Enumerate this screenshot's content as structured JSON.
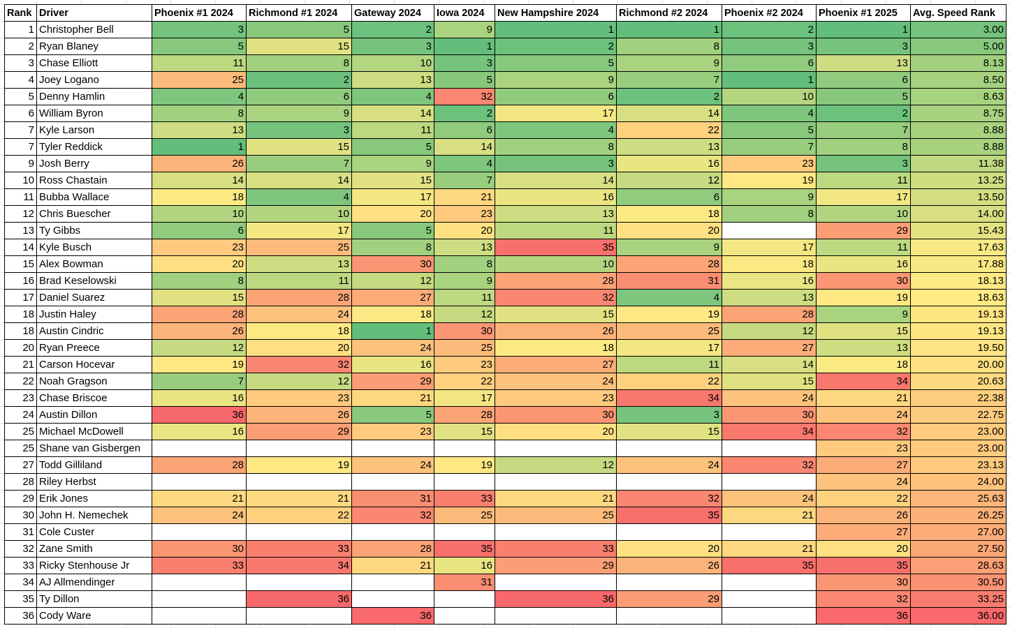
{
  "sheet": {
    "headers": [
      "Rank",
      "Driver",
      "Phoenix #1 2024",
      "Richmond #1 2024",
      "Gateway 2024",
      "Iowa 2024",
      "New Hampshire 2024",
      "Richmond #2 2024",
      "Phoenix #2 2024",
      "Phoenix #1 2025",
      "Avg. Speed Rank"
    ],
    "color_scale": {
      "low": "#63BE7B",
      "mid": "#FFEB84",
      "high": "#F8696B",
      "min": 1,
      "max": 36
    },
    "rows": [
      {
        "rank": "1",
        "driver": "Christopher Bell",
        "vals": [
          "3",
          "5",
          "2",
          "9",
          "1",
          "1",
          "2",
          "1"
        ],
        "avg": "3.00"
      },
      {
        "rank": "2",
        "driver": "Ryan Blaney",
        "vals": [
          "5",
          "15",
          "3",
          "1",
          "2",
          "8",
          "3",
          "3"
        ],
        "avg": "5.00"
      },
      {
        "rank": "3",
        "driver": "Chase Elliott",
        "vals": [
          "11",
          "8",
          "10",
          "3",
          "5",
          "9",
          "6",
          "13"
        ],
        "avg": "8.13"
      },
      {
        "rank": "4",
        "driver": "Joey Logano",
        "vals": [
          "25",
          "2",
          "13",
          "5",
          "9",
          "7",
          "1",
          "6"
        ],
        "avg": "8.50"
      },
      {
        "rank": "5",
        "driver": "Denny Hamlin",
        "vals": [
          "4",
          "6",
          "4",
          "32",
          "6",
          "2",
          "10",
          "5"
        ],
        "avg": "8.63"
      },
      {
        "rank": "6",
        "driver": "William Byron",
        "vals": [
          "8",
          "9",
          "14",
          "2",
          "17",
          "14",
          "4",
          "2"
        ],
        "avg": "8.75"
      },
      {
        "rank": "7",
        "driver": "Kyle Larson",
        "vals": [
          "13",
          "3",
          "11",
          "6",
          "4",
          "22",
          "5",
          "7"
        ],
        "avg": "8.88"
      },
      {
        "rank": "7",
        "driver": "Tyler Reddick",
        "vals": [
          "1",
          "15",
          "5",
          "14",
          "8",
          "13",
          "7",
          "8"
        ],
        "avg": "8.88"
      },
      {
        "rank": "9",
        "driver": "Josh Berry",
        "vals": [
          "26",
          "7",
          "9",
          "4",
          "3",
          "16",
          "23",
          "3"
        ],
        "avg": "11.38"
      },
      {
        "rank": "10",
        "driver": "Ross Chastain",
        "vals": [
          "14",
          "14",
          "15",
          "7",
          "14",
          "12",
          "19",
          "11"
        ],
        "avg": "13.25"
      },
      {
        "rank": "11",
        "driver": "Bubba Wallace",
        "vals": [
          "18",
          "4",
          "17",
          "21",
          "16",
          "6",
          "9",
          "17"
        ],
        "avg": "13.50"
      },
      {
        "rank": "12",
        "driver": "Chris Buescher",
        "vals": [
          "10",
          "10",
          "20",
          "23",
          "13",
          "18",
          "8",
          "10"
        ],
        "avg": "14.00"
      },
      {
        "rank": "13",
        "driver": "Ty Gibbs",
        "vals": [
          "6",
          "17",
          "5",
          "20",
          "11",
          "20",
          "",
          "29"
        ],
        "avg": "15.43"
      },
      {
        "rank": "14",
        "driver": "Kyle Busch",
        "vals": [
          "23",
          "25",
          "8",
          "13",
          "35",
          "9",
          "17",
          "11"
        ],
        "avg": "17.63"
      },
      {
        "rank": "15",
        "driver": "Alex Bowman",
        "vals": [
          "20",
          "13",
          "30",
          "8",
          "10",
          "28",
          "18",
          "16"
        ],
        "avg": "17.88"
      },
      {
        "rank": "16",
        "driver": "Brad Keselowski",
        "vals": [
          "8",
          "11",
          "12",
          "9",
          "28",
          "31",
          "16",
          "30"
        ],
        "avg": "18.13"
      },
      {
        "rank": "17",
        "driver": "Daniel Suarez",
        "vals": [
          "15",
          "28",
          "27",
          "11",
          "32",
          "4",
          "13",
          "19"
        ],
        "avg": "18.63"
      },
      {
        "rank": "18",
        "driver": "Justin Haley",
        "vals": [
          "28",
          "24",
          "18",
          "12",
          "15",
          "19",
          "28",
          "9"
        ],
        "avg": "19.13"
      },
      {
        "rank": "18",
        "driver": "Austin Cindric",
        "vals": [
          "26",
          "18",
          "1",
          "30",
          "26",
          "25",
          "12",
          "15"
        ],
        "avg": "19.13"
      },
      {
        "rank": "20",
        "driver": "Ryan Preece",
        "vals": [
          "12",
          "20",
          "24",
          "25",
          "18",
          "17",
          "27",
          "13"
        ],
        "avg": "19.50"
      },
      {
        "rank": "21",
        "driver": "Carson Hocevar",
        "vals": [
          "19",
          "32",
          "16",
          "23",
          "27",
          "11",
          "14",
          "18"
        ],
        "avg": "20.00"
      },
      {
        "rank": "22",
        "driver": "Noah Gragson",
        "vals": [
          "7",
          "12",
          "29",
          "22",
          "24",
          "22",
          "15",
          "34"
        ],
        "avg": "20.63"
      },
      {
        "rank": "23",
        "driver": "Chase Briscoe",
        "vals": [
          "16",
          "23",
          "21",
          "17",
          "23",
          "34",
          "24",
          "21"
        ],
        "avg": "22.38"
      },
      {
        "rank": "24",
        "driver": "Austin Dillon",
        "vals": [
          "36",
          "26",
          "5",
          "28",
          "30",
          "3",
          "30",
          "24"
        ],
        "avg": "22.75"
      },
      {
        "rank": "25",
        "driver": "Michael McDowell",
        "vals": [
          "16",
          "29",
          "23",
          "15",
          "20",
          "15",
          "34",
          "32"
        ],
        "avg": "23.00"
      },
      {
        "rank": "25",
        "driver": "Shane van Gisbergen",
        "vals": [
          "",
          "",
          "",
          "",
          "",
          "",
          "",
          "23"
        ],
        "avg": "23.00"
      },
      {
        "rank": "27",
        "driver": "Todd Gilliland",
        "vals": [
          "28",
          "19",
          "24",
          "19",
          "12",
          "24",
          "32",
          "27"
        ],
        "avg": "23.13"
      },
      {
        "rank": "28",
        "driver": "Riley Herbst",
        "vals": [
          "",
          "",
          "",
          "",
          "",
          "",
          "",
          "24"
        ],
        "avg": "24.00"
      },
      {
        "rank": "29",
        "driver": "Erik Jones",
        "vals": [
          "21",
          "21",
          "31",
          "33",
          "21",
          "32",
          "24",
          "22"
        ],
        "avg": "25.63"
      },
      {
        "rank": "30",
        "driver": "John H. Nemechek",
        "vals": [
          "24",
          "22",
          "32",
          "25",
          "25",
          "35",
          "21",
          "26"
        ],
        "avg": "26.25"
      },
      {
        "rank": "31",
        "driver": "Cole Custer",
        "vals": [
          "",
          "",
          "",
          "",
          "",
          "",
          "",
          "27"
        ],
        "avg": "27.00"
      },
      {
        "rank": "32",
        "driver": "Zane Smith",
        "vals": [
          "30",
          "33",
          "28",
          "35",
          "33",
          "20",
          "21",
          "20"
        ],
        "avg": "27.50"
      },
      {
        "rank": "33",
        "driver": "Ricky Stenhouse Jr",
        "vals": [
          "33",
          "34",
          "21",
          "16",
          "29",
          "26",
          "35",
          "35"
        ],
        "avg": "28.63"
      },
      {
        "rank": "34",
        "driver": "AJ Allmendinger",
        "vals": [
          "",
          "",
          "",
          "31",
          "",
          "",
          "",
          "30"
        ],
        "avg": "30.50"
      },
      {
        "rank": "35",
        "driver": "Ty Dillon",
        "vals": [
          "",
          "36",
          "",
          "",
          "36",
          "29",
          "",
          "32"
        ],
        "avg": "33.25"
      },
      {
        "rank": "36",
        "driver": "Cody Ware",
        "vals": [
          "",
          "",
          "36",
          "",
          "",
          "",
          "",
          "36"
        ],
        "avg": "36.00"
      }
    ]
  }
}
